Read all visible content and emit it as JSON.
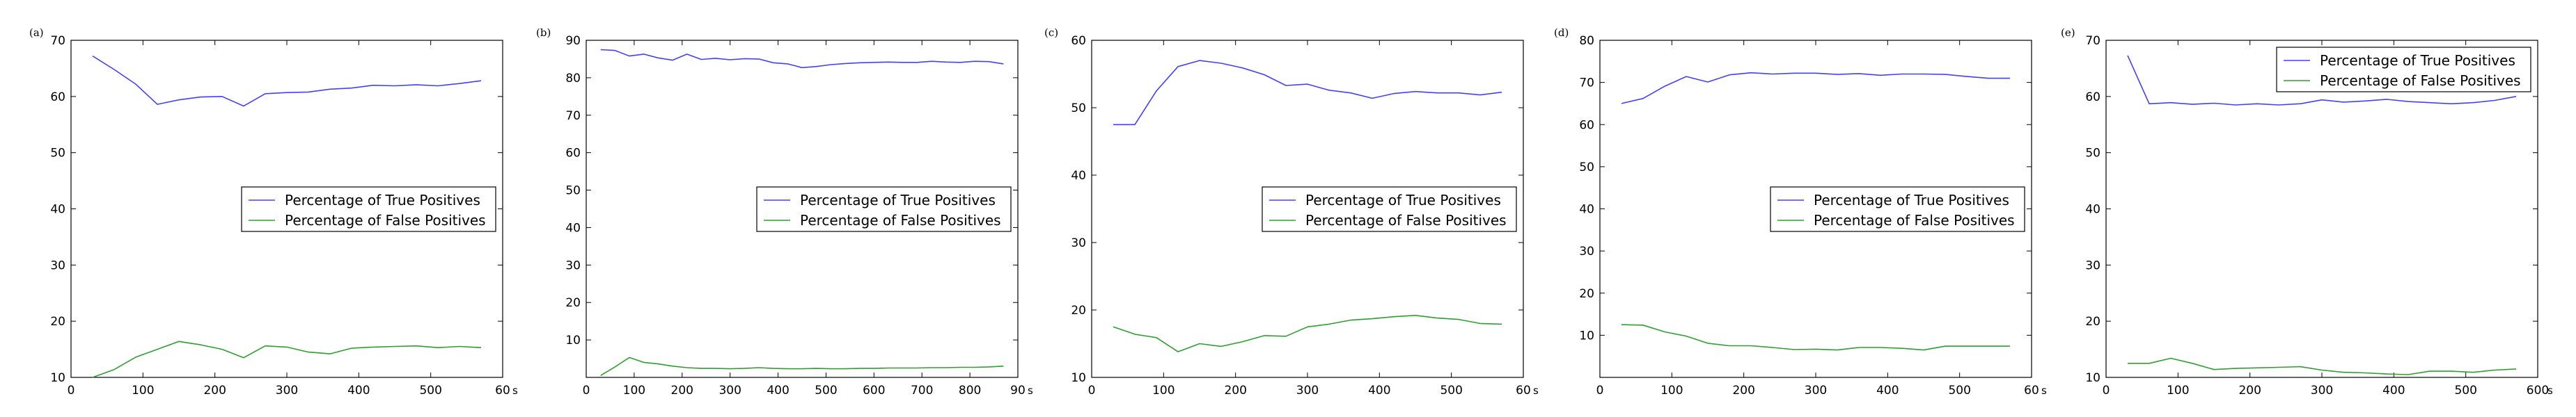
{
  "colors": {
    "true_positives": "#4040ff",
    "false_positives": "#2ca02c"
  },
  "chart_data": [
    {
      "type": "line",
      "panel_label": "(a)",
      "x_unit": "s",
      "xlim": [
        0,
        60
      ],
      "ylim": [
        10,
        70
      ],
      "xticks": [
        0,
        10,
        20,
        30,
        40,
        50,
        60
      ],
      "xtick_labels": [
        "0",
        "100",
        "200",
        "300",
        "400",
        "500",
        "60"
      ],
      "yticks": [
        10,
        20,
        30,
        40,
        50,
        60,
        70
      ],
      "legend": "center-right",
      "series": [
        {
          "name": "Percentage of True Positives",
          "x": [
            3,
            6,
            9,
            12,
            15,
            18,
            21,
            24,
            27,
            30,
            33,
            36,
            39,
            42,
            45,
            48,
            51,
            54,
            57
          ],
          "y": [
            67.2,
            64.8,
            62.2,
            58.6,
            59.4,
            59.9,
            60.0,
            58.3,
            60.5,
            60.7,
            60.8,
            61.3,
            61.5,
            62.0,
            61.9,
            62.1,
            61.9,
            62.3,
            62.8
          ]
        },
        {
          "name": "Percentage of False Positives",
          "x": [
            3,
            6,
            9,
            12,
            15,
            18,
            21,
            24,
            27,
            30,
            33,
            36,
            39,
            42,
            45,
            48,
            51,
            54,
            57
          ],
          "y": [
            10.0,
            11.4,
            13.6,
            15.0,
            16.4,
            15.8,
            15.0,
            13.5,
            15.6,
            15.4,
            14.5,
            14.2,
            15.2,
            15.4,
            15.5,
            15.6,
            15.3,
            15.5,
            15.3
          ]
        }
      ]
    },
    {
      "type": "line",
      "panel_label": "(b)",
      "x_unit": "s",
      "xlim": [
        0,
        90
      ],
      "ylim": [
        0,
        90
      ],
      "xticks": [
        0,
        10,
        20,
        30,
        40,
        50,
        60,
        70,
        80,
        90
      ],
      "xtick_labels": [
        "0",
        "100",
        "200",
        "300",
        "400",
        "500",
        "600",
        "700",
        "800",
        "90"
      ],
      "yticks": [
        10,
        20,
        30,
        40,
        50,
        60,
        70,
        80,
        90
      ],
      "legend": "center-right",
      "series": [
        {
          "name": "Percentage of True Positives",
          "x": [
            3,
            6,
            9,
            12,
            15,
            18,
            21,
            24,
            27,
            30,
            33,
            36,
            39,
            42,
            45,
            48,
            51,
            54,
            57,
            60,
            63,
            66,
            69,
            72,
            75,
            78,
            81,
            84,
            87
          ],
          "y": [
            87.5,
            87.3,
            85.8,
            86.3,
            85.3,
            84.7,
            86.3,
            84.9,
            85.2,
            84.8,
            85.1,
            85.0,
            84.0,
            83.7,
            82.7,
            83.0,
            83.5,
            83.8,
            84.0,
            84.1,
            84.2,
            84.1,
            84.1,
            84.4,
            84.2,
            84.1,
            84.4,
            84.3,
            83.7
          ]
        },
        {
          "name": "Percentage of False Positives",
          "x": [
            3,
            6,
            9,
            12,
            15,
            18,
            21,
            24,
            27,
            30,
            33,
            36,
            39,
            42,
            45,
            48,
            51,
            54,
            57,
            60,
            63,
            66,
            69,
            72,
            75,
            78,
            81,
            84,
            87
          ],
          "y": [
            0.5,
            2.8,
            5.3,
            4.0,
            3.6,
            3.0,
            2.6,
            2.4,
            2.4,
            2.3,
            2.4,
            2.6,
            2.4,
            2.3,
            2.3,
            2.4,
            2.3,
            2.3,
            2.4,
            2.4,
            2.5,
            2.5,
            2.5,
            2.6,
            2.6,
            2.7,
            2.7,
            2.8,
            3.0
          ]
        }
      ]
    },
    {
      "type": "line",
      "panel_label": "(c)",
      "x_unit": "s",
      "xlim": [
        0,
        60
      ],
      "ylim": [
        10,
        60
      ],
      "xticks": [
        0,
        10,
        20,
        30,
        40,
        50,
        60
      ],
      "xtick_labels": [
        "0",
        "100",
        "200",
        "300",
        "400",
        "500",
        "60"
      ],
      "yticks": [
        10,
        20,
        30,
        40,
        50,
        60
      ],
      "legend": "center-right",
      "series": [
        {
          "name": "Percentage of True Positives",
          "x": [
            3,
            6,
            9,
            12,
            15,
            18,
            21,
            24,
            27,
            30,
            33,
            36,
            39,
            42,
            45,
            48,
            51,
            54,
            57
          ],
          "y": [
            47.5,
            47.5,
            52.5,
            56.1,
            57.0,
            56.6,
            55.9,
            54.9,
            53.3,
            53.5,
            52.6,
            52.2,
            51.4,
            52.1,
            52.4,
            52.2,
            52.2,
            51.9,
            52.3
          ]
        },
        {
          "name": "Percentage of False Positives",
          "x": [
            3,
            6,
            9,
            12,
            15,
            18,
            21,
            24,
            27,
            30,
            33,
            36,
            39,
            42,
            45,
            48,
            51,
            54,
            57
          ],
          "y": [
            17.5,
            16.4,
            15.9,
            13.8,
            15.0,
            14.6,
            15.3,
            16.2,
            16.1,
            17.5,
            17.9,
            18.5,
            18.7,
            19.0,
            19.2,
            18.8,
            18.6,
            18.0,
            17.9
          ]
        }
      ]
    },
    {
      "type": "line",
      "panel_label": "(d)",
      "x_unit": "s",
      "xlim": [
        0,
        60
      ],
      "ylim": [
        0,
        80
      ],
      "xticks": [
        0,
        10,
        20,
        30,
        40,
        50,
        60
      ],
      "xtick_labels": [
        "0",
        "100",
        "200",
        "300",
        "400",
        "500",
        "60"
      ],
      "yticks": [
        10,
        20,
        30,
        40,
        50,
        60,
        70,
        80
      ],
      "legend": "center-right",
      "series": [
        {
          "name": "Percentage of True Positives",
          "x": [
            3,
            6,
            9,
            12,
            15,
            18,
            21,
            24,
            27,
            30,
            33,
            36,
            39,
            42,
            45,
            48,
            51,
            54,
            57
          ],
          "y": [
            65.0,
            66.2,
            69.1,
            71.4,
            70.1,
            71.8,
            72.3,
            72.0,
            72.2,
            72.2,
            71.9,
            72.1,
            71.7,
            72.0,
            72.0,
            71.9,
            71.4,
            71.0,
            71.0
          ]
        },
        {
          "name": "Percentage of False Positives",
          "x": [
            3,
            6,
            9,
            12,
            15,
            18,
            21,
            24,
            27,
            30,
            33,
            36,
            39,
            42,
            45,
            48,
            51,
            54,
            57
          ],
          "y": [
            12.5,
            12.4,
            10.8,
            9.8,
            8.1,
            7.5,
            7.5,
            7.1,
            6.6,
            6.7,
            6.5,
            7.1,
            7.1,
            6.9,
            6.5,
            7.4,
            7.4,
            7.4,
            7.4
          ]
        }
      ]
    },
    {
      "type": "line",
      "panel_label": "(e)",
      "x_unit": "s",
      "xlim": [
        0,
        60
      ],
      "ylim": [
        10,
        70
      ],
      "xticks": [
        0,
        10,
        20,
        30,
        40,
        50,
        60
      ],
      "xtick_labels": [
        "0",
        "100",
        "200",
        "300",
        "400",
        "500",
        "600"
      ],
      "yticks": [
        10,
        20,
        30,
        40,
        50,
        60,
        70
      ],
      "legend": "top-right",
      "series": [
        {
          "name": "Percentage of True Positives",
          "x": [
            3,
            6,
            9,
            12,
            15,
            18,
            21,
            24,
            27,
            30,
            33,
            36,
            39,
            42,
            45,
            48,
            51,
            54,
            57
          ],
          "y": [
            67.3,
            58.7,
            58.9,
            58.6,
            58.8,
            58.5,
            58.7,
            58.5,
            58.7,
            59.4,
            59.0,
            59.2,
            59.5,
            59.1,
            58.9,
            58.7,
            58.9,
            59.3,
            60.0
          ]
        },
        {
          "name": "Percentage of False Positives",
          "x": [
            3,
            6,
            9,
            12,
            15,
            18,
            21,
            24,
            27,
            30,
            33,
            36,
            39,
            42,
            45,
            48,
            51,
            54,
            57
          ],
          "y": [
            12.5,
            12.5,
            13.4,
            12.5,
            11.4,
            11.6,
            11.7,
            11.8,
            11.9,
            11.3,
            10.9,
            10.8,
            10.6,
            10.5,
            11.1,
            11.1,
            10.9,
            11.3,
            11.5
          ]
        }
      ]
    }
  ]
}
